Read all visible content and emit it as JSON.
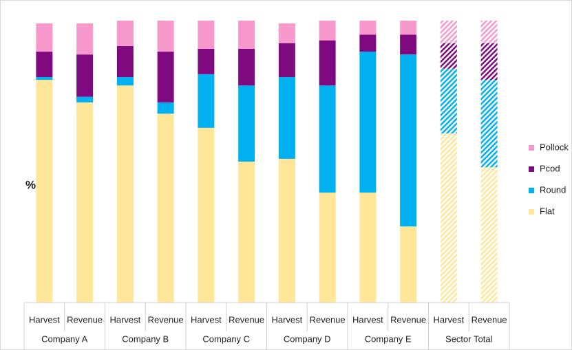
{
  "chart_data": {
    "type": "stacked-bar",
    "y_label": "%",
    "categories": [
      "Harvest",
      "Revenue",
      "Harvest",
      "Revenue",
      "Harvest",
      "Revenue",
      "Harvest",
      "Revenue",
      "Harvest",
      "Revenue",
      "Harvest",
      "Revenue"
    ],
    "groups": [
      "Company A",
      "Company B",
      "Company C",
      "Company D",
      "Company E",
      "Sector Total"
    ],
    "hatched": [
      false,
      false,
      false,
      false,
      false,
      false,
      false,
      false,
      false,
      false,
      true,
      true
    ],
    "ylim": [
      0,
      100
    ],
    "series": [
      {
        "name": "Flat",
        "color": "#FFE699",
        "values": [
          79,
          71,
          77,
          67,
          62,
          50,
          51,
          39,
          39,
          27,
          60,
          48
        ]
      },
      {
        "name": "Round",
        "color": "#00B0F0",
        "values": [
          1,
          2,
          3,
          4,
          19,
          27,
          29,
          38,
          50,
          61,
          23,
          31
        ]
      },
      {
        "name": "Pcod",
        "color": "#7F0A80",
        "values": [
          9,
          15,
          11,
          18,
          9,
          13,
          12,
          16,
          6,
          7,
          9,
          13
        ]
      },
      {
        "name": "Pollock",
        "color": "#F799CC",
        "values": [
          10,
          11,
          9,
          11,
          10,
          10,
          7,
          7,
          5,
          5,
          8,
          8
        ]
      }
    ],
    "legend": "right"
  }
}
